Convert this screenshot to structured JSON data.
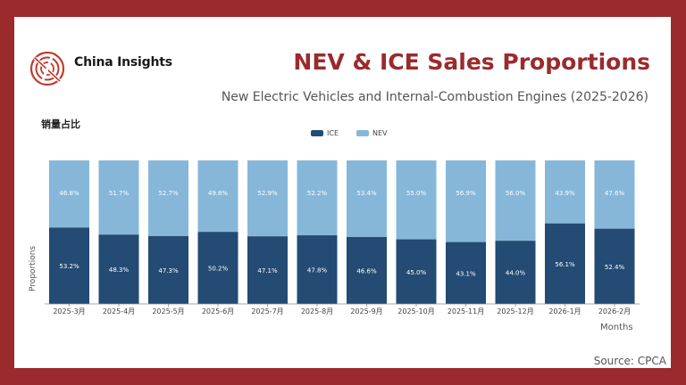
{
  "header": {
    "brand": "China Insights",
    "title": "NEV & ICE Sales Proportions",
    "subtitle": "New Electric Vehicles and Internal-Combustion Engines (2025-2026)"
  },
  "footer": {
    "source": "Source: CPCA"
  },
  "colors": {
    "ice": "#234b73",
    "nev": "#86b7d9",
    "accent": "#9b2a2c"
  },
  "chart_data": {
    "type": "bar",
    "stacked": true,
    "y_title": "销量占比",
    "ylabel": "Proportions",
    "xlabel": "Months",
    "ylim": [
      0,
      100
    ],
    "legend_position": "top-center",
    "categories": [
      "2025-3月",
      "2025-4月",
      "2025-5月",
      "2025-6月",
      "2025-7月",
      "2025-8月",
      "2025-9月",
      "2025-10月",
      "2025-11月",
      "2025-12月",
      "2026-1月",
      "2026-2月"
    ],
    "series": [
      {
        "name": "ICE",
        "values": [
          53.2,
          48.3,
          47.3,
          50.2,
          47.1,
          47.8,
          46.6,
          45.0,
          43.1,
          44.0,
          56.1,
          52.4
        ],
        "labels": [
          "53.2%",
          "48.3%",
          "47.3%",
          "50.2%",
          "47.1%",
          "47.8%",
          "46.6%",
          "45.0%",
          "43.1%",
          "44.0%",
          "56.1%",
          "52.4%"
        ]
      },
      {
        "name": "NEV",
        "values": [
          46.8,
          51.7,
          52.7,
          49.8,
          52.9,
          52.2,
          53.4,
          55.0,
          56.9,
          56.0,
          43.9,
          47.6
        ],
        "labels": [
          "46.8%",
          "51.7%",
          "52.7%",
          "49.8%",
          "52.9%",
          "52.2%",
          "53.4%",
          "55.0%",
          "56.9%",
          "56.0%",
          "43.9%",
          "47.6%"
        ]
      }
    ]
  }
}
